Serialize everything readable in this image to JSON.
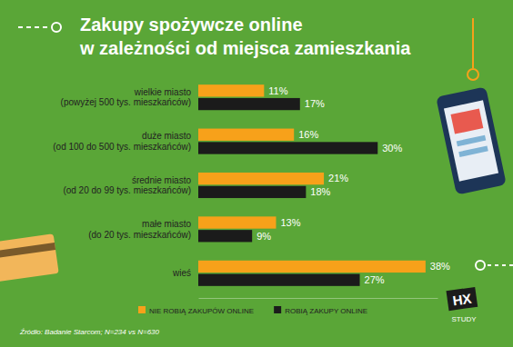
{
  "chart_data": {
    "type": "bar",
    "orientation": "horizontal",
    "title": "Zakupy spożywcze online\nw zależności od miejsca zamieszkania",
    "categories": [
      "wielkie miasto\n(powyżej 500 tys. mieszkańców)",
      "duże miasto\n(od 100 do 500 tys. mieszkańców)",
      "średnie miasto\n(od 20 do 99 tys. mieszkańców)",
      "małe miasto\n(do 20 tys. mieszkańców)",
      "wieś"
    ],
    "series": [
      {
        "name": "NIE ROBIĄ ZAKUPÓW ONLINE",
        "color": "#f7a11a",
        "values": [
          11,
          16,
          21,
          13,
          38
        ],
        "value_labels": [
          "11%",
          "16%",
          "21%",
          "13%",
          "38%"
        ]
      },
      {
        "name": "ROBIĄ ZAKUPY ONLINE",
        "color": "#1b1b1b",
        "values": [
          17,
          30,
          18,
          9,
          27
        ],
        "value_labels": [
          "17%",
          "30%",
          "18%",
          "9%",
          "27%"
        ]
      }
    ],
    "xlim": [
      0,
      40
    ],
    "data_labels": true,
    "tick_labels": "y",
    "legend": "bottom",
    "grid": false,
    "source": "Źródło: Badanie Starcom; N=234 vs N=630",
    "annotations": [
      "HX",
      "STUDY"
    ]
  }
}
